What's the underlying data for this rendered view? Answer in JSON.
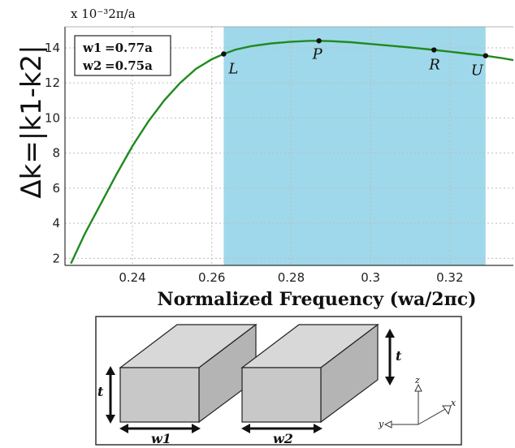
{
  "chart_data": {
    "type": "line",
    "scale_note": "x 10⁻³2π/a",
    "xlabel": "Normalized Frequency (wa/2πc)",
    "ylabel": "Δk=|k1-k2|",
    "xlim": [
      0.223,
      0.336
    ],
    "ylim": [
      1.6,
      15.2
    ],
    "xticks": [
      "0.24",
      "0.26",
      "0.28",
      "0.3",
      "0.32"
    ],
    "xtick_values": [
      0.24,
      0.26,
      0.28,
      0.3,
      0.32
    ],
    "yticks": [
      "2",
      "4",
      "6",
      "8",
      "10",
      "12",
      "14"
    ],
    "ytick_values": [
      2,
      4,
      6,
      8,
      10,
      12,
      14
    ],
    "grid": true,
    "shaded_region": {
      "x": [
        0.263,
        0.329
      ],
      "color": "#9fd8ea"
    },
    "series": [
      {
        "color": "#1f8a1f",
        "x": [
          0.2245,
          0.228,
          0.232,
          0.236,
          0.24,
          0.244,
          0.248,
          0.252,
          0.256,
          0.26,
          0.263,
          0.266,
          0.27,
          0.275,
          0.28,
          0.285,
          0.287,
          0.29,
          0.295,
          0.3,
          0.305,
          0.31,
          0.316,
          0.32,
          0.325,
          0.329,
          0.333,
          0.336
        ],
        "y": [
          1.7,
          3.4,
          5.1,
          6.8,
          8.4,
          9.8,
          11.0,
          12.0,
          12.8,
          13.35,
          13.65,
          13.9,
          14.1,
          14.25,
          14.35,
          14.4,
          14.4,
          14.38,
          14.32,
          14.22,
          14.12,
          14.02,
          13.88,
          13.78,
          13.65,
          13.55,
          13.42,
          13.3
        ]
      }
    ],
    "points": [
      {
        "label": "L",
        "x": 0.263,
        "y": 13.65
      },
      {
        "label": "P",
        "x": 0.287,
        "y": 14.4
      },
      {
        "label": "R",
        "x": 0.316,
        "y": 13.88
      },
      {
        "label": "U",
        "x": 0.329,
        "y": 13.55
      }
    ],
    "legend": {
      "w1_sym": "w1",
      "w1_val": "=0.77a",
      "w2_sym": "w2",
      "w2_val": "=0.75a",
      "placement": "top-left"
    }
  },
  "diagram": {
    "t_label": "t",
    "w1_label": "w1",
    "w2_label": "w2",
    "axis_x": "x",
    "axis_y": "y",
    "axis_z": "z",
    "box_color": "#c8c8c8"
  },
  "colors": {
    "curve": "#1f8a1f",
    "shade": "#9fd8ea",
    "grid": "#bdbdbd"
  }
}
